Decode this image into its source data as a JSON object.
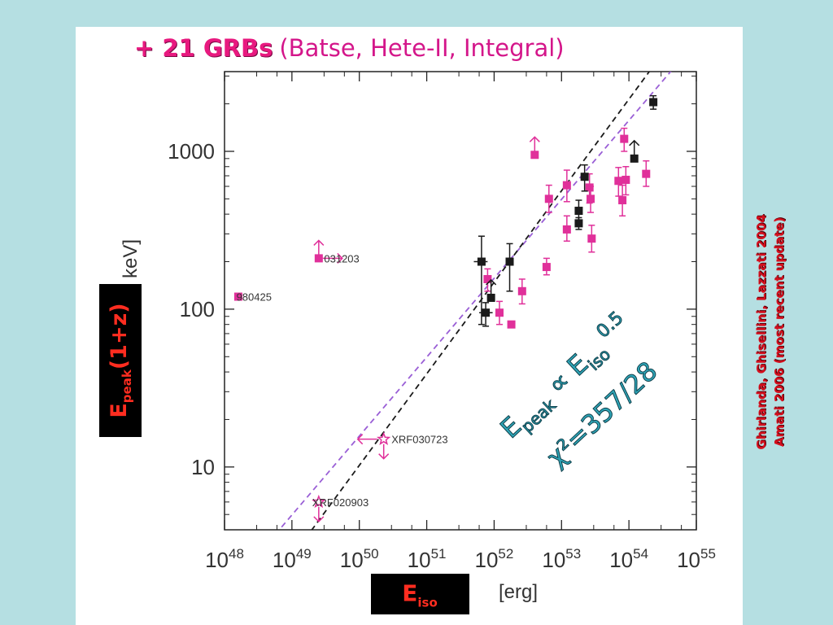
{
  "title": {
    "accent": "+ 21 GRBs",
    "rest": "(Batse, Hete-II, Integral)"
  },
  "labels": {
    "y_main": "E",
    "y_sub": "peak",
    "y_suffix": "(1+z)",
    "x_main": "E",
    "x_sub": "iso",
    "y_unit": "keV]",
    "x_unit": "[erg]"
  },
  "relation": {
    "lhs": "E",
    "lhs_sub": "peak",
    "symbol": "∝",
    "rhs": "E",
    "rhs_sub": "iso",
    "exponent": "0.5",
    "chi2": "χ²=357/28"
  },
  "references": [
    "Ghirlanda, Ghisellini, Lazzati 2004",
    "Amati 2006 (most recent update)"
  ],
  "colors": {
    "magenta": "#e0309a",
    "black": "#1a1a1a",
    "purple_fit": "#9a5fd6",
    "black_fit": "#444444",
    "accent_red": "#ff2d20"
  },
  "chart_data": {
    "type": "scatter",
    "x_scale": "log",
    "y_scale": "log",
    "xlim": [
      1e+48,
      1e+55
    ],
    "ylim": [
      4,
      3200
    ],
    "x_ticks": [
      {
        "value": 1e+48,
        "base": "10",
        "exp": "48"
      },
      {
        "value": 1e+49,
        "base": "10",
        "exp": "49"
      },
      {
        "value": 1e+50,
        "base": "10",
        "exp": "50"
      },
      {
        "value": 1e+51,
        "base": "10",
        "exp": "51"
      },
      {
        "value": 1e+52,
        "base": "10",
        "exp": "52"
      },
      {
        "value": 1e+53,
        "base": "10",
        "exp": "53"
      },
      {
        "value": 1e+54,
        "base": "10",
        "exp": "54"
      },
      {
        "value": 1e+55,
        "base": "10",
        "exp": "55"
      }
    ],
    "y_ticks": [
      {
        "value": 10,
        "label": "10"
      },
      {
        "value": 100,
        "label": "100"
      },
      {
        "value": 1000,
        "label": "1000"
      }
    ],
    "annotations": [
      {
        "x": 3e+49,
        "y": 210,
        "text": "031203"
      },
      {
        "x": 1.5e+48,
        "y": 120,
        "text": "980425"
      },
      {
        "x": 3e+50,
        "y": 15,
        "text": "XRF030723"
      },
      {
        "x": 2e+49,
        "y": 6,
        "text": "XRF020903"
      }
    ],
    "fits": [
      {
        "name": "",
        "color": "purple",
        "slope": 0.5,
        "x0": 1e+52,
        "y0": 157
      },
      {
        "name": "",
        "color": "black",
        "slope": 0.58,
        "x0": 1e+52,
        "y0": 148
      }
    ],
    "series": [
      {
        "name": "",
        "color": "magenta",
        "points": [
          {
            "x": 1.6e+48,
            "y": 120
          },
          {
            "x": 2.5e+49,
            "y": 210,
            "xlim": "lower",
            "ylim": "lower"
          },
          {
            "x": 2.3e+50,
            "y": 15,
            "xlim": "upper",
            "ylim": "upper",
            "marker": "star"
          },
          {
            "x": 2.5e+49,
            "y": 6,
            "ylim": "upper",
            "marker": "star"
          },
          {
            "x": 8e+51,
            "y": 155,
            "ylo": 130,
            "yhi": 180
          },
          {
            "x": 1.2e+52,
            "y": 95,
            "ylo": 80,
            "yhi": 112
          },
          {
            "x": 1.8e+52,
            "y": 80
          },
          {
            "x": 2.6e+52,
            "y": 130,
            "ylo": 108,
            "yhi": 155
          },
          {
            "x": 4e+52,
            "y": 950,
            "ylim": "lower"
          },
          {
            "x": 6e+52,
            "y": 185,
            "ylo": 165,
            "yhi": 210
          },
          {
            "x": 6.5e+52,
            "y": 500,
            "ylo": 410,
            "yhi": 610
          },
          {
            "x": 1.2e+53,
            "y": 610,
            "ylo": 480,
            "yhi": 760
          },
          {
            "x": 1.2e+53,
            "y": 320,
            "ylo": 270,
            "yhi": 390
          },
          {
            "x": 2.6e+53,
            "y": 590,
            "ylo": 470,
            "yhi": 720
          },
          {
            "x": 2.7e+53,
            "y": 500,
            "ylo": 410,
            "yhi": 600
          },
          {
            "x": 2.8e+53,
            "y": 280,
            "ylo": 230,
            "yhi": 340
          },
          {
            "x": 7e+53,
            "y": 650,
            "ylo": 520,
            "yhi": 790
          },
          {
            "x": 8e+53,
            "y": 490,
            "ylo": 390,
            "yhi": 610
          },
          {
            "x": 8.5e+53,
            "y": 1200,
            "ylo": 1000,
            "yhi": 1400
          },
          {
            "x": 9e+53,
            "y": 660,
            "ylo": 530,
            "yhi": 800
          },
          {
            "x": 1.8e+54,
            "y": 720,
            "ylo": 600,
            "yhi": 870
          }
        ]
      },
      {
        "name": "",
        "color": "black",
        "points": [
          {
            "x": 6.5e+51,
            "y": 200,
            "ylo": 80,
            "yhi": 290,
            "xlo": 5e+51,
            "xhi": 8e+51
          },
          {
            "x": 7.5e+51,
            "y": 95,
            "ylo": 78,
            "yhi": 110,
            "xlo": 6e+51,
            "xhi": 9.5e+51
          },
          {
            "x": 9e+51,
            "y": 118,
            "ylim": "lower"
          },
          {
            "x": 1.7e+52,
            "y": 200,
            "ylo": 130,
            "yhi": 260
          },
          {
            "x": 1.8e+53,
            "y": 420,
            "ylo": 360,
            "yhi": 490
          },
          {
            "x": 1.8e+53,
            "y": 350,
            "ylo": 320,
            "yhi": 380
          },
          {
            "x": 2.2e+53,
            "y": 690,
            "ylo": 560,
            "yhi": 820
          },
          {
            "x": 1.2e+54,
            "y": 900,
            "ylim": "lower"
          },
          {
            "x": 2.3e+54,
            "y": 2050,
            "ylo": 1850,
            "yhi": 2250
          }
        ]
      }
    ]
  }
}
